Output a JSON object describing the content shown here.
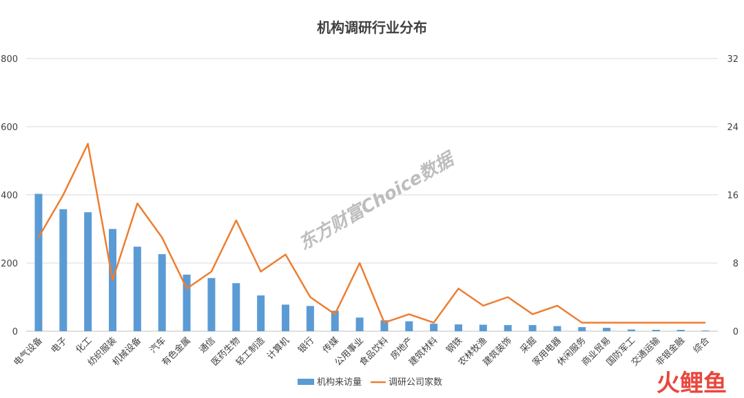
{
  "chart_data": {
    "type": "bar",
    "title": "机构调研行业分布",
    "categories": [
      "电气设备",
      "电子",
      "化工",
      "纺织服装",
      "机械设备",
      "汽车",
      "有色金属",
      "通信",
      "医药生物",
      "轻工制造",
      "计算机",
      "银行",
      "传媒",
      "公用事业",
      "食品饮料",
      "房地产",
      "建筑材料",
      "钢铁",
      "农林牧渔",
      "建筑装饰",
      "采掘",
      "家用电器",
      "休闲服务",
      "商业贸易",
      "国防军工",
      "交通运输",
      "非银金融",
      "综合"
    ],
    "series": [
      {
        "name": "机构来访量",
        "axis": "left",
        "kind": "bar",
        "color": "#5b9bd5",
        "values": [
          403,
          358,
          349,
          300,
          248,
          226,
          166,
          156,
          141,
          105,
          78,
          74,
          60,
          40,
          32,
          29,
          22,
          20,
          19,
          18,
          18,
          15,
          12,
          10,
          5,
          4,
          4,
          2
        ]
      },
      {
        "name": "调研公司家数",
        "axis": "right",
        "kind": "line",
        "color": "#ed7d31",
        "values": [
          11,
          16,
          22,
          6,
          15,
          11,
          5,
          7,
          13,
          7,
          9,
          4,
          2,
          8,
          1,
          2,
          1,
          5,
          3,
          4,
          2,
          3,
          1,
          1,
          1,
          1,
          1,
          1
        ]
      }
    ],
    "ylim": [
      0,
      800
    ],
    "yticks": [
      "0",
      "200",
      "400",
      "600",
      "800"
    ],
    "y2lim": [
      0,
      32
    ],
    "y2ticks": [
      "0",
      "8",
      "16",
      "24",
      "32"
    ],
    "grid": true,
    "legend_position": "bottom"
  },
  "watermark": "东方财富Choice数据",
  "logo": "火鲤鱼"
}
